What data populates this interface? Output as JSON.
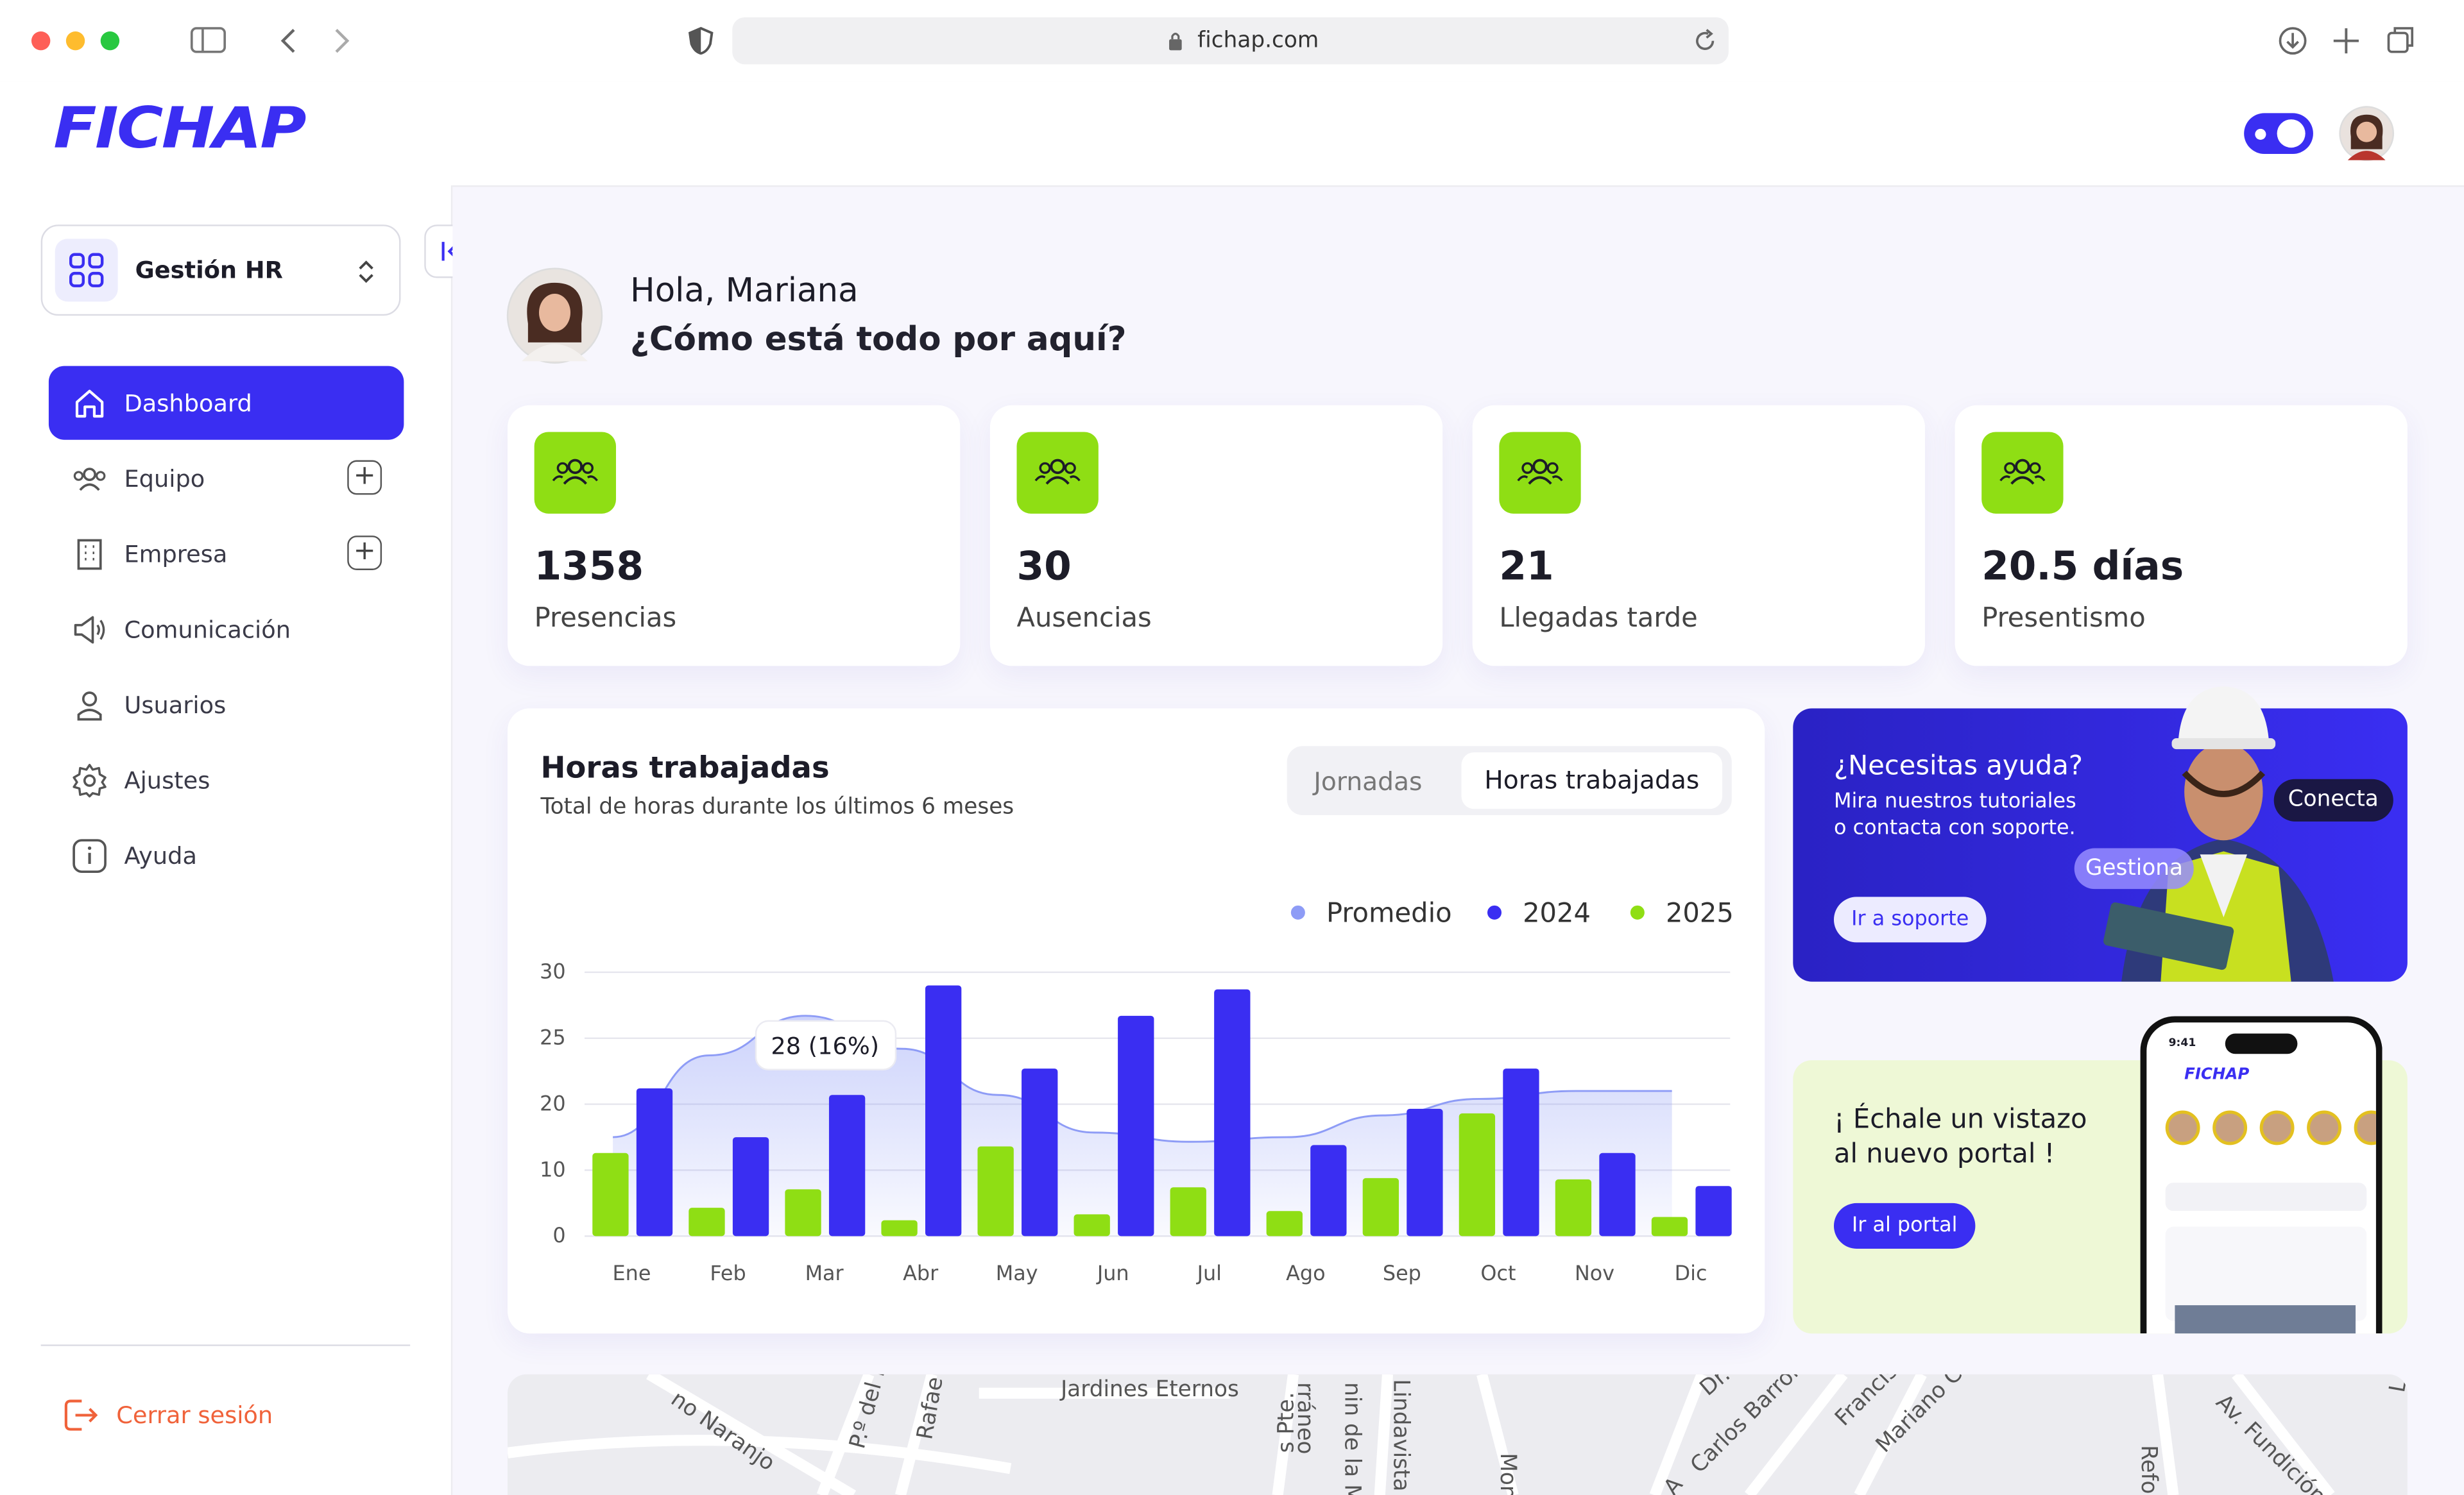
{
  "browser": {
    "url": "fichap.com"
  },
  "header": {
    "logo": "FICHAP"
  },
  "sidebar": {
    "workspace": "Gestión HR",
    "nav": [
      "Dashboard",
      "Equipo",
      "Empresa",
      "Comunicación",
      "Usuarios",
      "Ajustes",
      "Ayuda"
    ],
    "logout": "Cerrar sesión"
  },
  "greeting": {
    "hello": "Hola, Mariana",
    "question": "¿Cómo está todo por aquí?"
  },
  "stats": [
    {
      "value": 1358,
      "label": "Presencias"
    },
    {
      "value": 30,
      "label": "Ausencias"
    },
    {
      "value": 21,
      "label": "Llegadas tarde"
    },
    {
      "value": "20.5 días",
      "label": "Presentismo"
    }
  ],
  "chart_data": {
    "type": "bar",
    "title": "Horas trabajadas",
    "subtitle": "Total de horas durante los últimos 6 meses",
    "tabs": [
      "Jornadas",
      "Horas trabajadas"
    ],
    "annotation": "28 (16%)",
    "categories": [
      "Ene",
      "Feb",
      "Mar",
      "Abr",
      "May",
      "Jun",
      "Jul",
      "Ago",
      "Sep",
      "Oct",
      "Nov",
      "Dic"
    ],
    "series": [
      {
        "name": "Promedio",
        "color": "#8e9cf6",
        "type": "area",
        "values": [
          15,
          23.7,
          26.7,
          24.2,
          20.7,
          15.7,
          14.3,
          15,
          18.3,
          20.4,
          21,
          21
        ]
      },
      {
        "name": "2024",
        "color": "#3a2ef2",
        "values": [
          21.2,
          15,
          20.7,
          29,
          22.7,
          26.7,
          28.7,
          13.8,
          19.3,
          22.7,
          12.6,
          7.6
        ]
      },
      {
        "name": "2025",
        "color": "#8fde14",
        "values": [
          12.6,
          4.3,
          7.1,
          2.4,
          13.6,
          3.3,
          7.4,
          3.8,
          8.8,
          18.6,
          8.6,
          2.9
        ]
      }
    ],
    "ylim": [
      0,
      30
    ],
    "yticks": [
      0,
      10,
      20,
      25,
      30
    ],
    "grid": true
  },
  "promo_help": {
    "title": "¿Necesitas ayuda?",
    "lines": [
      "Mira nuestros tutoriales",
      "o contacta con soporte."
    ],
    "button": "Ir a soporte",
    "badges": [
      "Conecta",
      "Gestiona"
    ]
  },
  "promo_portal": {
    "lines": [
      "¡ Échale un vistazo",
      "al nuevo portal !"
    ],
    "button": "Ir al portal",
    "phone_time": "9:41",
    "phone_logo": "FICHAP"
  },
  "map": {
    "labels": [
      "no Naranjo",
      "P.º del I",
      "Rafae",
      "Jardines Eternos",
      "s Pte.",
      "rráneo",
      "nin de la M",
      "Lindavista",
      "Mon",
      "Dr.",
      "Carlos Barron",
      "Francisc",
      "Mariano Chic",
      "Av. Fundición",
      "Refor",
      "A",
      "L"
    ]
  }
}
